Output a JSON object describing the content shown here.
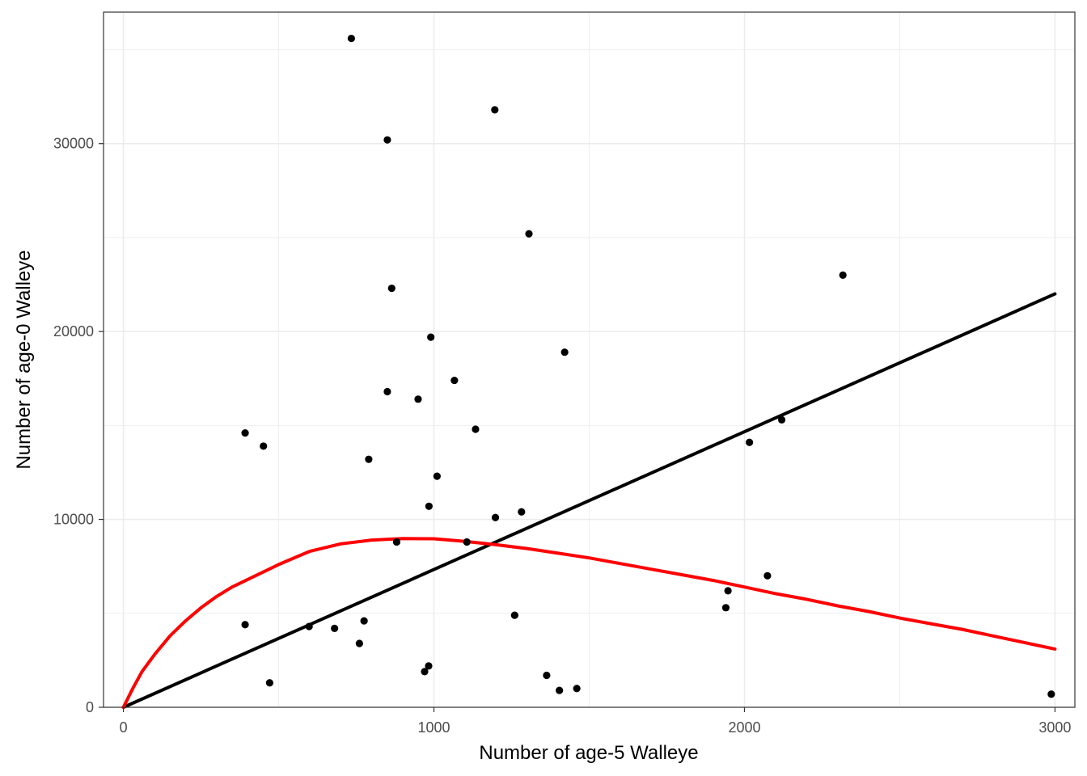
{
  "chart_data": {
    "type": "scatter",
    "title": "",
    "xlabel": "Number of age-5 Walleye",
    "ylabel": "Number of age-0 Walleye",
    "xlim": [
      0,
      3000
    ],
    "ylim": [
      0,
      37000
    ],
    "x_ticks": [
      0,
      1000,
      2000,
      3000
    ],
    "y_ticks": [
      0,
      10000,
      20000,
      30000
    ],
    "x_tick_labels": [
      "0",
      "1000",
      "2000",
      "3000"
    ],
    "y_tick_labels": [
      "0",
      "10000",
      "20000",
      "30000"
    ],
    "grid": true,
    "legend": "none",
    "points": [
      {
        "x": 734,
        "y": 35600
      },
      {
        "x": 1196,
        "y": 31800
      },
      {
        "x": 850,
        "y": 30200
      },
      {
        "x": 1306,
        "y": 25200
      },
      {
        "x": 2317,
        "y": 23000
      },
      {
        "x": 864,
        "y": 22300
      },
      {
        "x": 990,
        "y": 19700
      },
      {
        "x": 1421,
        "y": 18900
      },
      {
        "x": 1066,
        "y": 17400
      },
      {
        "x": 850,
        "y": 16800
      },
      {
        "x": 949,
        "y": 16400
      },
      {
        "x": 2120,
        "y": 15300
      },
      {
        "x": 1134,
        "y": 14800
      },
      {
        "x": 392,
        "y": 14600
      },
      {
        "x": 451,
        "y": 13900
      },
      {
        "x": 2016,
        "y": 14100
      },
      {
        "x": 790,
        "y": 13200
      },
      {
        "x": 1010,
        "y": 12300
      },
      {
        "x": 984,
        "y": 10700
      },
      {
        "x": 1282,
        "y": 10400
      },
      {
        "x": 1198,
        "y": 10100
      },
      {
        "x": 880,
        "y": 8800
      },
      {
        "x": 1106,
        "y": 8800
      },
      {
        "x": 2074,
        "y": 7000
      },
      {
        "x": 1947,
        "y": 6200
      },
      {
        "x": 1940,
        "y": 5300
      },
      {
        "x": 1260,
        "y": 4900
      },
      {
        "x": 392,
        "y": 4400
      },
      {
        "x": 775,
        "y": 4600
      },
      {
        "x": 598,
        "y": 4300
      },
      {
        "x": 680,
        "y": 4200
      },
      {
        "x": 760,
        "y": 3400
      },
      {
        "x": 983,
        "y": 2200
      },
      {
        "x": 970,
        "y": 1900
      },
      {
        "x": 1363,
        "y": 1700
      },
      {
        "x": 471,
        "y": 1300
      },
      {
        "x": 1460,
        "y": 1000
      },
      {
        "x": 1404,
        "y": 900
      },
      {
        "x": 2988,
        "y": 700
      }
    ],
    "lines": [
      {
        "color": "#000000",
        "x": [
          0,
          3000
        ],
        "y": [
          0,
          22000
        ]
      },
      {
        "color": "#ff0000",
        "x": [
          0,
          30,
          60,
          100,
          150,
          200,
          250,
          300,
          350,
          400,
          500,
          600,
          700,
          800,
          900,
          1000,
          1100,
          1200,
          1300,
          1400,
          1500,
          1600,
          1700,
          1800,
          1900,
          2000,
          2100,
          2200,
          2300,
          2400,
          2500,
          2600,
          2700,
          2800,
          2900,
          3000
        ],
        "y": [
          0,
          1000,
          1900,
          2800,
          3800,
          4600,
          5300,
          5900,
          6400,
          6800,
          7600,
          8300,
          8700,
          8900,
          8980,
          8970,
          8830,
          8650,
          8450,
          8200,
          7950,
          7650,
          7350,
          7050,
          6750,
          6400,
          6050,
          5750,
          5400,
          5100,
          4750,
          4450,
          4150,
          3800,
          3450,
          3100
        ]
      }
    ]
  }
}
